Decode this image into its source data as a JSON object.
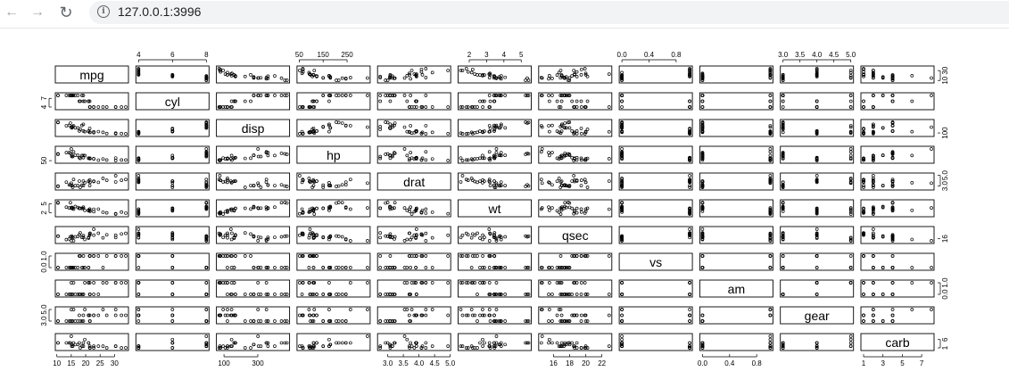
{
  "browser": {
    "url": "127.0.0.1:3996",
    "icons": {
      "back": "arrow-left-icon",
      "forward": "arrow-right-icon",
      "reload": "reload-icon",
      "info": "info-icon"
    }
  },
  "chart_data": {
    "type": "scatter",
    "title": "",
    "layout": "pairs",
    "variables": [
      "mpg",
      "cyl",
      "disp",
      "hp",
      "drat",
      "wt",
      "qsec",
      "vs",
      "am",
      "gear",
      "carb"
    ],
    "ranges": {
      "mpg": [
        10.4,
        33.9
      ],
      "cyl": [
        4,
        8
      ],
      "disp": [
        71.1,
        472
      ],
      "hp": [
        52,
        335
      ],
      "drat": [
        2.76,
        4.93
      ],
      "wt": [
        1.513,
        5.424
      ],
      "qsec": [
        14.5,
        22.9
      ],
      "vs": [
        0,
        1
      ],
      "am": [
        0,
        1
      ],
      "gear": [
        3,
        5
      ],
      "carb": [
        1,
        8
      ]
    },
    "ticks": {
      "mpg": [
        "10",
        "15",
        "20",
        "25",
        "30"
      ],
      "cyl": [
        "4",
        "6",
        "8"
      ],
      "disp": [
        "100",
        "300"
      ],
      "hp": [
        "50",
        "150",
        "250"
      ],
      "drat": [
        "3.0",
        "3.5",
        "4.0",
        "4.5",
        "5.0"
      ],
      "wt": [
        "2",
        "3",
        "4",
        "5"
      ],
      "qsec": [
        "16",
        "18",
        "20",
        "22"
      ],
      "vs": [
        "0.0",
        "0.4",
        "0.8"
      ],
      "am": [
        "0.0",
        "0.4",
        "0.8"
      ],
      "gear": [
        "3.0",
        "3.5",
        "4.0",
        "4.5",
        "5.0"
      ],
      "carb": [
        "1",
        "3",
        "5",
        "7"
      ]
    },
    "left_ticks": {
      "cyl": [
        "4",
        "7"
      ],
      "hp": [
        "50"
      ],
      "wt": [
        "2",
        "5"
      ],
      "vs": [
        "0.0",
        "1.0"
      ],
      "gear": [
        "3.0",
        "5.0"
      ]
    },
    "right_ticks": {
      "mpg": [
        "10",
        "30"
      ],
      "disp": [
        "100"
      ],
      "drat": [
        "3.0",
        "5.0"
      ],
      "qsec": [
        "16"
      ],
      "am": [
        "0.0",
        "1.0"
      ],
      "carb": [
        "1",
        "6"
      ]
    },
    "observations": {
      "mpg": [
        21.0,
        21.0,
        22.8,
        21.4,
        18.7,
        18.1,
        14.3,
        24.4,
        22.8,
        19.2,
        17.8,
        16.4,
        17.3,
        15.2,
        10.4,
        10.4,
        14.7,
        32.4,
        30.4,
        33.9,
        21.5,
        15.5,
        15.2,
        13.3,
        19.2,
        27.3,
        26.0,
        30.4,
        15.8,
        19.7,
        15.0,
        21.4
      ],
      "cyl": [
        6,
        6,
        4,
        6,
        8,
        6,
        8,
        4,
        4,
        6,
        6,
        8,
        8,
        8,
        8,
        8,
        8,
        4,
        4,
        4,
        4,
        8,
        8,
        8,
        8,
        4,
        4,
        4,
        8,
        6,
        8,
        4
      ],
      "disp": [
        160,
        160,
        108,
        258,
        360,
        225,
        360,
        146.7,
        140.8,
        167.6,
        167.6,
        275.8,
        275.8,
        275.8,
        472,
        460,
        440,
        78.7,
        75.7,
        71.1,
        120.1,
        318,
        304,
        350,
        400,
        79,
        120.3,
        95.1,
        351,
        145,
        301,
        121
      ],
      "hp": [
        110,
        110,
        93,
        110,
        175,
        105,
        245,
        62,
        95,
        123,
        123,
        180,
        180,
        180,
        205,
        215,
        230,
        66,
        52,
        65,
        97,
        150,
        150,
        245,
        175,
        66,
        91,
        113,
        264,
        175,
        335,
        109
      ],
      "drat": [
        3.9,
        3.9,
        3.85,
        3.08,
        3.15,
        2.76,
        3.21,
        3.69,
        3.92,
        3.92,
        3.92,
        3.07,
        3.07,
        3.07,
        2.93,
        3.0,
        3.23,
        4.08,
        4.93,
        4.22,
        3.7,
        2.76,
        3.15,
        3.73,
        3.08,
        4.08,
        4.43,
        3.77,
        4.22,
        3.62,
        3.54,
        4.11
      ],
      "wt": [
        2.62,
        2.875,
        2.32,
        3.215,
        3.44,
        3.46,
        3.57,
        3.19,
        3.15,
        3.44,
        3.44,
        4.07,
        3.73,
        3.78,
        5.25,
        5.424,
        5.345,
        2.2,
        1.615,
        1.835,
        2.465,
        3.52,
        3.435,
        3.84,
        3.845,
        1.935,
        2.14,
        1.513,
        3.17,
        2.77,
        3.57,
        2.78
      ],
      "qsec": [
        16.46,
        17.02,
        18.61,
        19.44,
        17.02,
        20.22,
        15.84,
        20.0,
        22.9,
        18.3,
        18.9,
        17.4,
        17.6,
        18.0,
        17.98,
        17.82,
        17.42,
        19.47,
        18.52,
        19.9,
        20.01,
        16.87,
        17.3,
        15.41,
        17.05,
        18.9,
        16.7,
        16.9,
        14.5,
        15.5,
        14.6,
        18.6
      ],
      "vs": [
        0,
        0,
        1,
        1,
        0,
        1,
        0,
        1,
        1,
        1,
        1,
        0,
        0,
        0,
        0,
        0,
        0,
        1,
        1,
        1,
        1,
        0,
        0,
        0,
        0,
        1,
        0,
        1,
        0,
        0,
        0,
        1
      ],
      "am": [
        1,
        1,
        1,
        0,
        0,
        0,
        0,
        0,
        0,
        0,
        0,
        0,
        0,
        0,
        0,
        0,
        0,
        1,
        1,
        1,
        0,
        0,
        0,
        0,
        0,
        1,
        1,
        1,
        1,
        1,
        1,
        1
      ],
      "gear": [
        4,
        4,
        4,
        3,
        3,
        3,
        3,
        4,
        4,
        4,
        4,
        3,
        3,
        3,
        3,
        3,
        3,
        4,
        4,
        4,
        3,
        3,
        3,
        3,
        3,
        4,
        5,
        5,
        5,
        5,
        5,
        4
      ],
      "carb": [
        4,
        4,
        1,
        1,
        2,
        1,
        4,
        2,
        2,
        4,
        4,
        3,
        3,
        3,
        4,
        4,
        4,
        1,
        2,
        1,
        1,
        2,
        2,
        4,
        2,
        1,
        2,
        2,
        4,
        6,
        8,
        2
      ]
    }
  }
}
